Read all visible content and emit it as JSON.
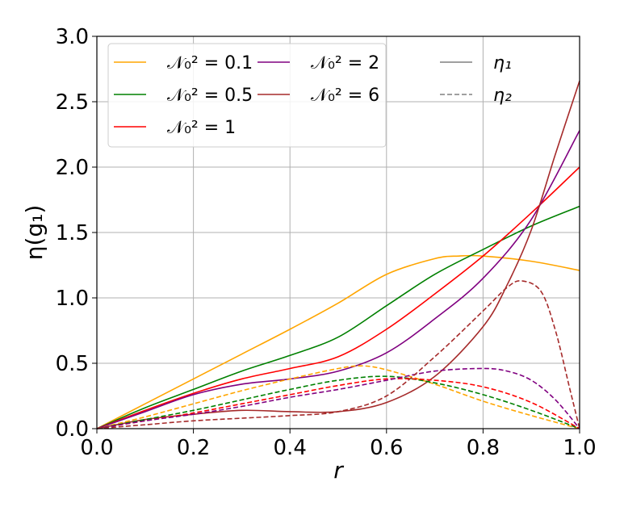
{
  "chart_data": {
    "type": "line",
    "title": "",
    "xlabel": "r",
    "ylabel": "η(g₁)",
    "xlim": [
      0,
      1
    ],
    "ylim": [
      0,
      3
    ],
    "grid": true,
    "legend_placement": "top-left",
    "xticks": [
      "0.0",
      "0.2",
      "0.4",
      "0.6",
      "0.8",
      "1.0"
    ],
    "yticks": [
      "0.0",
      "0.5",
      "1.0",
      "1.5",
      "2.0",
      "2.5",
      "3.0"
    ],
    "legend": [
      {
        "label": "𝒩₀² = 0.1",
        "color": "#ffa500",
        "style": "solid"
      },
      {
        "label": "𝒩₀² = 0.5",
        "color": "#008000",
        "style": "solid"
      },
      {
        "label": "𝒩₀² = 1",
        "color": "#ff0000",
        "style": "solid"
      },
      {
        "label": "𝒩₀² = 2",
        "color": "#800080",
        "style": "solid"
      },
      {
        "label": "𝒩₀² = 6",
        "color": "#a52a2a",
        "style": "solid"
      },
      {
        "label": "η₁",
        "color": "#808080",
        "style": "solid"
      },
      {
        "label": "η₂",
        "color": "#808080",
        "style": "dashed"
      }
    ],
    "series": [
      {
        "name": "η1 N0^2=0.1",
        "color": "#ffa500",
        "dash": false,
        "x": [
          0,
          0.1,
          0.2,
          0.3,
          0.4,
          0.5,
          0.6,
          0.7,
          0.75,
          0.8,
          0.9,
          1.0
        ],
        "y": [
          0,
          0.19,
          0.38,
          0.57,
          0.76,
          0.96,
          1.18,
          1.3,
          1.32,
          1.32,
          1.28,
          1.21
        ]
      },
      {
        "name": "η1 N0^2=0.5",
        "color": "#008000",
        "dash": false,
        "x": [
          0,
          0.1,
          0.2,
          0.3,
          0.4,
          0.5,
          0.6,
          0.7,
          0.8,
          0.9,
          1.0
        ],
        "y": [
          0,
          0.16,
          0.3,
          0.44,
          0.56,
          0.7,
          0.94,
          1.18,
          1.37,
          1.55,
          1.7
        ]
      },
      {
        "name": "η1 N0^2=1",
        "color": "#ff0000",
        "dash": false,
        "x": [
          0,
          0.1,
          0.2,
          0.3,
          0.4,
          0.5,
          0.6,
          0.7,
          0.8,
          0.9,
          1.0
        ],
        "y": [
          0,
          0.14,
          0.27,
          0.38,
          0.46,
          0.55,
          0.76,
          1.03,
          1.32,
          1.65,
          2.0
        ]
      },
      {
        "name": "η1 N0^2=2",
        "color": "#800080",
        "dash": false,
        "x": [
          0,
          0.1,
          0.2,
          0.3,
          0.4,
          0.5,
          0.6,
          0.7,
          0.8,
          0.9,
          1.0
        ],
        "y": [
          0,
          0.13,
          0.26,
          0.34,
          0.38,
          0.44,
          0.58,
          0.84,
          1.15,
          1.6,
          2.28
        ]
      },
      {
        "name": "η1 N0^2=6",
        "color": "#a52a2a",
        "dash": false,
        "x": [
          0,
          0.1,
          0.2,
          0.3,
          0.4,
          0.5,
          0.6,
          0.7,
          0.8,
          0.85,
          0.9,
          0.95,
          1.0
        ],
        "y": [
          0,
          0.07,
          0.11,
          0.14,
          0.13,
          0.13,
          0.2,
          0.4,
          0.78,
          1.1,
          1.52,
          2.1,
          2.66
        ]
      },
      {
        "name": "η2 N0^2=0.1",
        "color": "#ffa500",
        "dash": true,
        "x": [
          0,
          0.1,
          0.2,
          0.3,
          0.4,
          0.5,
          0.55,
          0.6,
          0.7,
          0.8,
          0.9,
          1.0
        ],
        "y": [
          0,
          0.09,
          0.19,
          0.29,
          0.38,
          0.46,
          0.48,
          0.45,
          0.34,
          0.21,
          0.1,
          0
        ]
      },
      {
        "name": "η2 N0^2=0.5",
        "color": "#008000",
        "dash": true,
        "x": [
          0,
          0.1,
          0.2,
          0.3,
          0.4,
          0.5,
          0.6,
          0.7,
          0.8,
          0.9,
          1.0
        ],
        "y": [
          0,
          0.07,
          0.14,
          0.22,
          0.3,
          0.37,
          0.4,
          0.35,
          0.26,
          0.14,
          0
        ]
      },
      {
        "name": "η2 N0^2=1",
        "color": "#ff0000",
        "dash": true,
        "x": [
          0,
          0.1,
          0.2,
          0.3,
          0.4,
          0.5,
          0.6,
          0.7,
          0.8,
          0.9,
          1.0
        ],
        "y": [
          0,
          0.06,
          0.12,
          0.19,
          0.26,
          0.33,
          0.38,
          0.37,
          0.32,
          0.2,
          0
        ]
      },
      {
        "name": "η2 N0^2=2",
        "color": "#800080",
        "dash": true,
        "x": [
          0,
          0.1,
          0.2,
          0.3,
          0.4,
          0.5,
          0.6,
          0.7,
          0.8,
          0.85,
          0.9,
          0.95,
          1.0
        ],
        "y": [
          0,
          0.06,
          0.11,
          0.17,
          0.24,
          0.3,
          0.37,
          0.44,
          0.46,
          0.44,
          0.37,
          0.22,
          0
        ]
      },
      {
        "name": "η2 N0^2=6",
        "color": "#a52a2a",
        "dash": true,
        "x": [
          0,
          0.1,
          0.2,
          0.3,
          0.4,
          0.5,
          0.6,
          0.7,
          0.8,
          0.85,
          0.88,
          0.92,
          0.95,
          0.98,
          1.0
        ],
        "y": [
          0,
          0.03,
          0.06,
          0.08,
          0.1,
          0.13,
          0.25,
          0.55,
          0.9,
          1.08,
          1.13,
          1.05,
          0.75,
          0.3,
          0
        ]
      }
    ]
  }
}
